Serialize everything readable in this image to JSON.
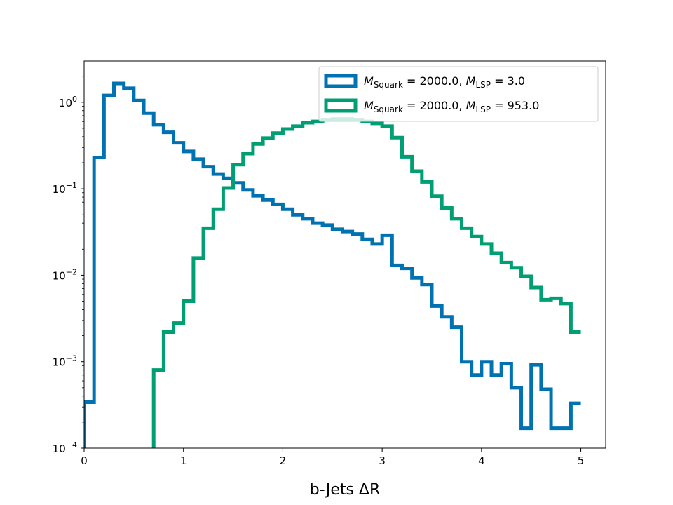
{
  "chart_data": {
    "type": "histogram-step",
    "title": "",
    "xlabel": "b-Jets ΔR",
    "ylabel": "",
    "yscale": "log",
    "xlim": [
      0,
      5.25
    ],
    "ylim": [
      0.0001,
      3
    ],
    "xticks": [
      0,
      1,
      2,
      3,
      4,
      5
    ],
    "xtick_labels": [
      "0",
      "1",
      "2",
      "3",
      "4",
      "5"
    ],
    "yticks": [
      0.0001,
      0.001,
      0.01,
      0.1,
      1
    ],
    "ytick_labels": [
      {
        "base": "10",
        "exp": "−4"
      },
      {
        "base": "10",
        "exp": "−3"
      },
      {
        "base": "10",
        "exp": "−2"
      },
      {
        "base": "10",
        "exp": "−1"
      },
      {
        "base": "10",
        "exp": "0"
      }
    ],
    "grid": false,
    "legend_position": "top-right",
    "bin_edges": [
      0,
      0.1,
      0.2,
      0.3,
      0.4,
      0.5,
      0.6,
      0.7,
      0.8,
      0.9,
      1.0,
      1.1,
      1.2,
      1.3,
      1.4,
      1.5,
      1.6,
      1.7,
      1.8,
      1.9,
      2.0,
      2.1,
      2.2,
      2.3,
      2.4,
      2.5,
      2.6,
      2.7,
      2.8,
      2.9,
      3.0,
      3.1,
      3.2,
      3.3,
      3.4,
      3.5,
      3.6,
      3.7,
      3.8,
      3.9,
      4.0,
      4.1,
      4.2,
      4.3,
      4.4,
      4.5,
      4.6,
      4.7,
      4.8,
      4.9,
      5.0
    ],
    "series": [
      {
        "name": "M_Squark = 2000.0, M_LSP = 3.0",
        "legend": {
          "m1": "M",
          "sub1": "Squark",
          "mid": " = 2000.0, ",
          "m2": "M",
          "sub2": "LSP",
          "end": " = 3.0"
        },
        "color": "#0072b2",
        "values": [
          0.00034,
          0.23,
          1.2,
          1.65,
          1.45,
          1.05,
          0.75,
          0.55,
          0.45,
          0.34,
          0.27,
          0.22,
          0.18,
          0.148,
          0.132,
          0.117,
          0.097,
          0.083,
          0.074,
          0.066,
          0.058,
          0.05,
          0.045,
          0.04,
          0.038,
          0.034,
          0.032,
          0.03,
          0.026,
          0.023,
          0.029,
          0.013,
          0.012,
          0.0093,
          0.0078,
          0.0044,
          0.0033,
          0.0025,
          0.001,
          0.0007,
          0.001,
          0.0007,
          0.00095,
          0.0005,
          0.00017,
          0.00092,
          0.00048,
          0.00017,
          0.00017,
          0.00033,
          0.00017
        ]
      },
      {
        "name": "M_Squark = 2000.0, M_LSP = 953.0",
        "legend": {
          "m1": "M",
          "sub1": "Squark",
          "mid": " = 2000.0, ",
          "m2": "M",
          "sub2": "LSP",
          "end": " = 953.0"
        },
        "color": "#009e73",
        "values": [
          null,
          null,
          null,
          null,
          null,
          null,
          null,
          0.0008,
          0.0022,
          0.0028,
          0.005,
          0.0158,
          0.035,
          0.058,
          0.102,
          0.19,
          0.255,
          0.33,
          0.385,
          0.44,
          0.49,
          0.53,
          0.58,
          0.6,
          0.63,
          0.64,
          0.64,
          0.63,
          0.6,
          0.57,
          0.53,
          0.39,
          0.235,
          0.16,
          0.12,
          0.082,
          0.06,
          0.045,
          0.035,
          0.028,
          0.023,
          0.018,
          0.014,
          0.0122,
          0.0097,
          0.0072,
          0.0052,
          0.0054,
          0.0047,
          0.0022,
          0.0047
        ]
      }
    ]
  }
}
